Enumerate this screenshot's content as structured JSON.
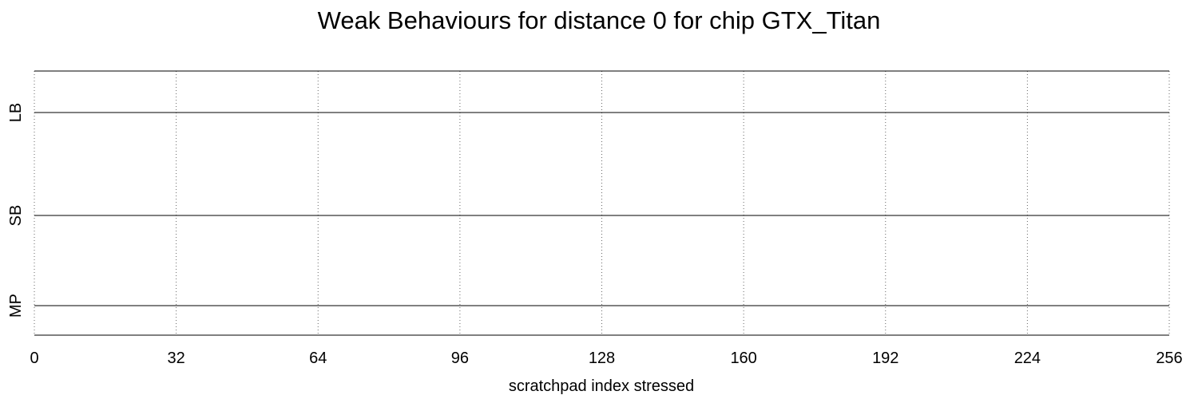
{
  "chart_data": {
    "type": "line",
    "title": "Weak Behaviours for distance 0 for chip GTX_Titan",
    "xlabel": "scratchpad index stressed",
    "ylabel": "",
    "xlim": [
      0,
      256
    ],
    "x_ticks": [
      0,
      32,
      64,
      96,
      128,
      160,
      192,
      224,
      256
    ],
    "grid": true,
    "rows": [
      "LB",
      "SB",
      "MP"
    ],
    "series": [
      {
        "name": "LB",
        "x": [
          0,
          256
        ],
        "values": [
          0,
          0
        ]
      },
      {
        "name": "SB",
        "x": [
          0,
          256
        ],
        "values": [
          0,
          0
        ]
      },
      {
        "name": "MP",
        "x": [
          0,
          256
        ],
        "values": [
          0,
          0
        ]
      }
    ]
  }
}
